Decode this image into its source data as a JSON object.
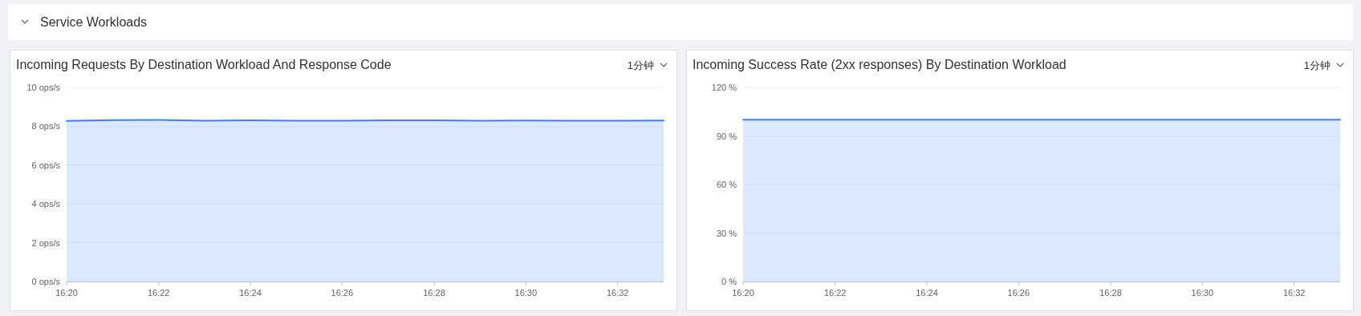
{
  "chart_data": [
    {
      "type": "other",
      "title": "Service Workloads"
    },
    {
      "type": "area",
      "title": "Incoming Requests By Destination Workload And Response Code",
      "annotations": [
        "1分钟"
      ],
      "x": [
        16.3333,
        16.35,
        16.3667,
        16.3833,
        16.4,
        16.4167,
        16.4333,
        16.45,
        16.4667,
        16.4833,
        16.5,
        16.5167,
        16.5333,
        16.55
      ],
      "series": [
        {
          "color": "#3f7ff2",
          "values": [
            8.27,
            8.32,
            8.33,
            8.29,
            8.31,
            8.29,
            8.29,
            8.31,
            8.31,
            8.28,
            8.3,
            8.28,
            8.28,
            8.3
          ]
        }
      ],
      "xlim": [
        16.3333,
        16.55
      ],
      "xticks": [
        {
          "value": 16.3333,
          "label": "16:20"
        },
        {
          "value": 16.3667,
          "label": "16:22"
        },
        {
          "value": 16.4,
          "label": "16:24"
        },
        {
          "value": 16.4333,
          "label": "16:26"
        },
        {
          "value": 16.4667,
          "label": "16:28"
        },
        {
          "value": 16.5,
          "label": "16:30"
        },
        {
          "value": 16.5333,
          "label": "16:32"
        }
      ],
      "ylim": [
        0,
        10
      ],
      "yticks": [
        {
          "value": 0,
          "label": "0 ops/s"
        },
        {
          "value": 2,
          "label": "2 ops/s"
        },
        {
          "value": 4,
          "label": "4 ops/s"
        },
        {
          "value": 6,
          "label": "6 ops/s"
        },
        {
          "value": 8,
          "label": "8 ops/s"
        },
        {
          "value": 10,
          "label": "10 ops/s"
        }
      ],
      "grid": "y"
    },
    {
      "type": "area",
      "title": "Incoming Success Rate (2xx responses) By Destination Workload",
      "annotations": [
        "1分钟"
      ],
      "x": [
        16.3333,
        16.35,
        16.3667,
        16.3833,
        16.4,
        16.4167,
        16.4333,
        16.45,
        16.4667,
        16.4833,
        16.5,
        16.5167,
        16.5333,
        16.55
      ],
      "series": [
        {
          "color": "#3f7ff2",
          "values": [
            100,
            100,
            100,
            100,
            100,
            100,
            100,
            100,
            100,
            100,
            100,
            100,
            100,
            100
          ]
        }
      ],
      "xlim": [
        16.3333,
        16.55
      ],
      "xticks": [
        {
          "value": 16.3333,
          "label": "16:20"
        },
        {
          "value": 16.3667,
          "label": "16:22"
        },
        {
          "value": 16.4,
          "label": "16:24"
        },
        {
          "value": 16.4333,
          "label": "16:26"
        },
        {
          "value": 16.4667,
          "label": "16:28"
        },
        {
          "value": 16.5,
          "label": "16:30"
        },
        {
          "value": 16.5333,
          "label": "16:32"
        }
      ],
      "ylim": [
        0,
        120
      ],
      "yticks": [
        {
          "value": 0,
          "label": "0 %"
        },
        {
          "value": 30,
          "label": "30 %"
        },
        {
          "value": 60,
          "label": "60 %"
        },
        {
          "value": 90,
          "label": "90 %"
        },
        {
          "value": 120,
          "label": "120 %"
        }
      ],
      "grid": "y"
    }
  ]
}
